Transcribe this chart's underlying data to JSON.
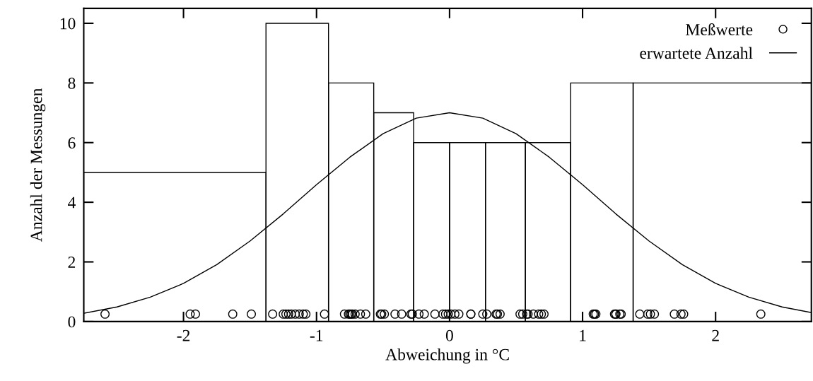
{
  "chart_data": {
    "type": "histogram",
    "xlabel": "Abweichung in °C",
    "ylabel": "Anzahl der Messungen",
    "bins": [
      -2.75,
      -1.38,
      -0.91,
      -0.57,
      -0.27,
      0,
      0.27,
      0.57,
      0.91,
      1.38,
      2.72
    ],
    "values": [
      5,
      10,
      8,
      7,
      6,
      6,
      6,
      6,
      8,
      8
    ],
    "color": "#000000",
    "series": [
      {
        "name": "erwartete Anzahl",
        "type": "line",
        "color": "#000000",
        "line_style": "solid",
        "x": [
          -2.75,
          -2.5,
          -2.25,
          -2.0,
          -1.75,
          -1.5,
          -1.25,
          -1.0,
          -0.75,
          -0.5,
          -0.25,
          0,
          0.25,
          0.5,
          0.75,
          1.0,
          1.25,
          1.5,
          1.75,
          2.0,
          2.25,
          2.5,
          2.72
        ],
        "values": [
          0.28,
          0.49,
          0.82,
          1.28,
          1.91,
          2.7,
          3.61,
          4.59,
          5.51,
          6.3,
          6.82,
          7.0,
          6.82,
          6.3,
          5.51,
          4.59,
          3.61,
          2.7,
          1.91,
          1.28,
          0.82,
          0.49,
          0.3
        ]
      },
      {
        "name": "Meßwerte",
        "type": "scatter",
        "color": "#000000",
        "marker": "circle",
        "x": [
          -2.59,
          -1.95,
          -1.91,
          -1.63,
          -1.49,
          -1.33,
          -1.25,
          -1.23,
          -1.21,
          -1.19,
          -1.16,
          -1.13,
          -1.1,
          -1.08,
          -0.94,
          -0.79,
          -0.76,
          -0.75,
          -0.74,
          -0.73,
          -0.71,
          -0.67,
          -0.63,
          -0.52,
          -0.51,
          -0.49,
          -0.41,
          -0.36,
          -0.29,
          -0.28,
          -0.23,
          -0.19,
          -0.11,
          -0.05,
          -0.03,
          -0.01,
          0.01,
          0.04,
          0.07,
          0.16,
          0.16,
          0.25,
          0.28,
          0.35,
          0.36,
          0.38,
          0.53,
          0.55,
          0.58,
          0.59,
          0.63,
          0.67,
          0.69,
          0.71,
          1.08,
          1.09,
          1.1,
          1.24,
          1.25,
          1.25,
          1.28,
          1.29,
          1.43,
          1.49,
          1.51,
          1.54,
          1.69,
          1.74,
          1.76,
          2.34
        ],
        "values": [
          0.25,
          0.25,
          0.25,
          0.25,
          0.25,
          0.25,
          0.25,
          0.25,
          0.25,
          0.25,
          0.25,
          0.25,
          0.25,
          0.25,
          0.25,
          0.25,
          0.25,
          0.25,
          0.25,
          0.25,
          0.25,
          0.25,
          0.25,
          0.25,
          0.25,
          0.25,
          0.25,
          0.25,
          0.25,
          0.25,
          0.25,
          0.25,
          0.25,
          0.25,
          0.25,
          0.25,
          0.25,
          0.25,
          0.25,
          0.25,
          0.25,
          0.25,
          0.25,
          0.25,
          0.25,
          0.25,
          0.25,
          0.25,
          0.25,
          0.25,
          0.25,
          0.25,
          0.25,
          0.25,
          0.25,
          0.25,
          0.25,
          0.25,
          0.25,
          0.25,
          0.25,
          0.25,
          0.25,
          0.25,
          0.25,
          0.25,
          0.25,
          0.25,
          0.25,
          0.25
        ]
      }
    ],
    "xlim": [
      -2.75,
      2.72
    ],
    "ylim": [
      0,
      10.5
    ],
    "xticks": [
      -2,
      -1,
      0,
      1,
      2
    ],
    "yticks": [
      0,
      2,
      4,
      6,
      8,
      10
    ],
    "grid": false,
    "legend": "top right"
  }
}
